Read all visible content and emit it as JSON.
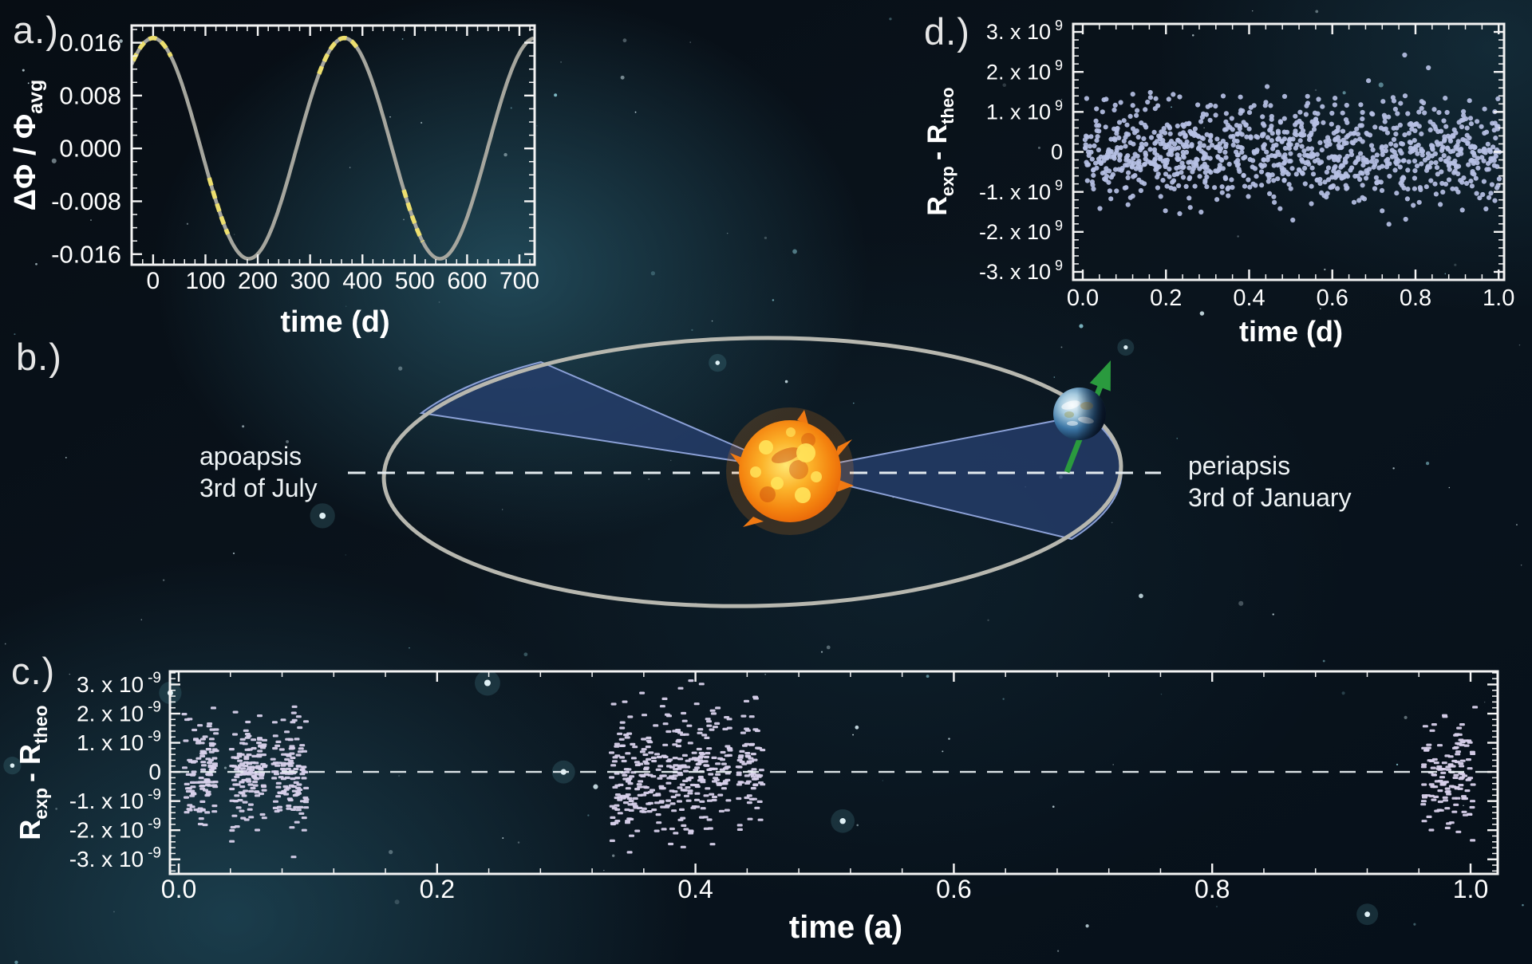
{
  "background": {
    "base_color": "#060b12",
    "glow_color": "#2f7d96",
    "star_seed": 99,
    "star_count": 130,
    "glow_star_count": 9,
    "star_color": "#d4e9ef",
    "star_teal_color": "#8fd0dc"
  },
  "panel_letters": {
    "a": "a.)",
    "b": "b.)",
    "c": "c.)",
    "d": "d.)"
  },
  "orbit_diagram": {
    "apoapsis_label_line1": "apoapsis",
    "apoapsis_label_line2": "3rd of July",
    "periapsis_label_line1": "periapsis",
    "periapsis_label_line2": "3rd of January",
    "orbit_color": "#b7b7af",
    "sweep_wedge_fill": "#263f6e",
    "sweep_wedge_edge": "#8ba0d6",
    "apsis_line_color": "#e3eaee",
    "spin_axis_arrow_color": "#2a9a3e",
    "sun_core_color": "#ffe873",
    "sun_mid_color": "#f89c1c",
    "sun_edge_color": "#e65f07",
    "earth_ocean_color": "#3a74a4",
    "earth_night_color": "#0b1a2e"
  },
  "chart_data": [
    {
      "id": "a",
      "type": "line",
      "xlabel": "time (d)",
      "ylabel_main": "ΔΦ / Φ",
      "ylabel_sub": "avg",
      "xlim": [
        -41,
        729
      ],
      "ylim": [
        -0.0176,
        0.0186
      ],
      "xticks": [
        {
          "v": 0,
          "label": "0"
        },
        {
          "v": 100,
          "label": "100"
        },
        {
          "v": 200,
          "label": "200"
        },
        {
          "v": 300,
          "label": "300"
        },
        {
          "v": 400,
          "label": "400"
        },
        {
          "v": 500,
          "label": "500"
        },
        {
          "v": 600,
          "label": "600"
        },
        {
          "v": 700,
          "label": "700"
        }
      ],
      "yticks": [
        {
          "v": 0.016,
          "label": "0.016"
        },
        {
          "v": 0.008,
          "label": "0.008"
        },
        {
          "v": 0.0,
          "label": "0.000"
        },
        {
          "v": -0.008,
          "label": "-0.008"
        },
        {
          "v": -0.016,
          "label": "-0.016"
        }
      ],
      "x_minor_step": 20,
      "y_minor_step": 0.002,
      "grid": false,
      "curve": {
        "kind": "cosine",
        "amplitude": 0.0167,
        "period_days": 365.25,
        "max_at_day": 0,
        "color": "#a6a69e"
      },
      "highlight_segments_days": [
        [
          -38,
          34
        ],
        [
          107,
          144
        ],
        [
          317,
          349
        ],
        [
          355,
          392
        ],
        [
          479,
          515
        ]
      ],
      "highlight_color": "#f0e26d",
      "zero_line": false
    },
    {
      "id": "c",
      "type": "scatter",
      "xlabel": "time (a)",
      "ylabel_r1": "R",
      "ylabel_sub1": "exp",
      "ylabel_mid": "- R",
      "ylabel_sub2": "theo",
      "y_unit": "1e-9",
      "xlim": [
        -0.0068,
        1.021
      ],
      "ylim": [
        -3.5,
        3.45
      ],
      "xticks": [
        {
          "v": 0.0,
          "label": "0.0"
        },
        {
          "v": 0.2,
          "label": "0.2"
        },
        {
          "v": 0.4,
          "label": "0.4"
        },
        {
          "v": 0.6,
          "label": "0.6"
        },
        {
          "v": 0.8,
          "label": "0.8"
        },
        {
          "v": 1.0,
          "label": "1.0"
        }
      ],
      "yticks": [
        {
          "v": 3,
          "m": "3. x 10",
          "e": "-9"
        },
        {
          "v": 2,
          "m": "2. x 10",
          "e": "-9"
        },
        {
          "v": 1,
          "m": "1. x 10",
          "e": "-9"
        },
        {
          "v": 0,
          "m": "0"
        },
        {
          "v": -1,
          "m": "-1. x 10",
          "e": "-9"
        },
        {
          "v": -2,
          "m": "-2. x 10",
          "e": "-9"
        },
        {
          "v": -3,
          "m": "-3. x 10",
          "e": "-9"
        }
      ],
      "x_minor_step": 0.04,
      "y_minor_step": 0.2,
      "grid": false,
      "zero_line": true,
      "marker": "hdash",
      "marker_color": "#d8d1eb",
      "points": {
        "seed": 7,
        "clip": 3.35,
        "clusters": [
          {
            "x0": 0.004,
            "x1": 0.03,
            "n": 115,
            "sigma": 0.85
          },
          {
            "x0": 0.041,
            "x1": 0.067,
            "n": 135,
            "sigma": 0.95
          },
          {
            "x0": 0.073,
            "x1": 0.099,
            "n": 125,
            "sigma": 0.9
          },
          {
            "x0": 0.335,
            "x1": 0.427,
            "n": 340,
            "sigma": 1.05
          },
          {
            "x0": 0.433,
            "x1": 0.453,
            "n": 70,
            "sigma": 1.0
          },
          {
            "x0": 0.963,
            "x1": 1.004,
            "n": 135,
            "sigma": 0.95
          }
        ]
      }
    },
    {
      "id": "d",
      "type": "scatter",
      "xlabel": "time (d)",
      "ylabel_r1": "R",
      "ylabel_sub1": "exp",
      "ylabel_mid": "- R",
      "ylabel_sub2": "theo",
      "y_unit": "1e9",
      "xlim": [
        -0.023,
        1.013
      ],
      "ylim": [
        -3.2,
        3.2
      ],
      "xticks": [
        {
          "v": 0.0,
          "label": "0.0"
        },
        {
          "v": 0.2,
          "label": "0.2"
        },
        {
          "v": 0.4,
          "label": "0.4"
        },
        {
          "v": 0.6,
          "label": "0.6"
        },
        {
          "v": 0.8,
          "label": "0.8"
        },
        {
          "v": 1.0,
          "label": "1.0"
        }
      ],
      "yticks": [
        {
          "v": 3,
          "m": "3. x 10",
          "e": "9"
        },
        {
          "v": 2,
          "m": "2. x 10",
          "e": "9"
        },
        {
          "v": 1,
          "m": "1. x 10",
          "e": "9"
        },
        {
          "v": 0,
          "m": "0"
        },
        {
          "v": -1,
          "m": "-1. x 10",
          "e": "9"
        },
        {
          "v": -2,
          "m": "-2. x 10",
          "e": "9"
        },
        {
          "v": -3,
          "m": "-3. x 10",
          "e": "9"
        }
      ],
      "x_minor_step": 0.04,
      "y_minor_step": 0.2,
      "grid": false,
      "zero_line": false,
      "marker": "dot",
      "marker_color": "#b6c0e4",
      "points": {
        "seed": 42,
        "n": 1080,
        "x0": 0.004,
        "x1": 1.002,
        "sigma": 0.62,
        "clip": 3.05
      }
    }
  ]
}
